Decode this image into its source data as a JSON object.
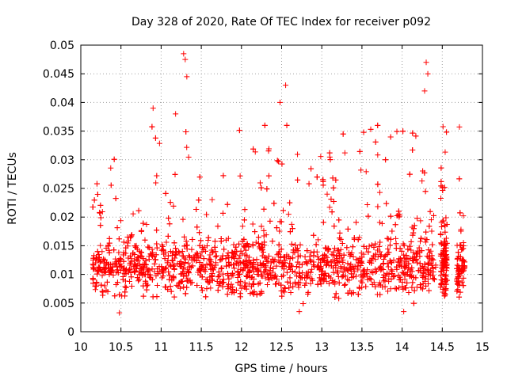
{
  "chart_data": {
    "type": "scatter",
    "title": "Day 328 of 2020, Rate Of TEC Index for receiver p092",
    "xlabel": "GPS time / hours",
    "ylabel": "ROTI / TECUs",
    "xlim": [
      10,
      15
    ],
    "ylim": [
      0,
      0.05
    ],
    "x_ticks": [
      "10",
      "10.5",
      "11",
      "11.5",
      "12",
      "12.5",
      "13",
      "13.5",
      "14",
      "14.5",
      "15"
    ],
    "y_ticks": [
      "0",
      "0.005",
      "0.01",
      "0.015",
      "0.02",
      "0.025",
      "0.03",
      "0.035",
      "0.04",
      "0.045",
      "0.05"
    ],
    "grid": true,
    "marker": "+",
    "color": "#ff0000",
    "x_range": [
      10.15,
      14.78
    ],
    "y_range": [
      0.0033,
      0.0485
    ],
    "estimated_point_count": 3000,
    "notable_points": [
      {
        "x": 11.28,
        "y": 0.0485
      },
      {
        "x": 11.3,
        "y": 0.0475
      },
      {
        "x": 11.32,
        "y": 0.0445
      },
      {
        "x": 14.3,
        "y": 0.047
      },
      {
        "x": 14.32,
        "y": 0.045
      },
      {
        "x": 14.28,
        "y": 0.042
      },
      {
        "x": 12.55,
        "y": 0.043
      },
      {
        "x": 12.48,
        "y": 0.04
      },
      {
        "x": 10.9,
        "y": 0.039
      },
      {
        "x": 11.18,
        "y": 0.038
      },
      {
        "x": 10.48,
        "y": 0.0033
      },
      {
        "x": 12.72,
        "y": 0.0035
      },
      {
        "x": 14.02,
        "y": 0.0035
      }
    ]
  }
}
